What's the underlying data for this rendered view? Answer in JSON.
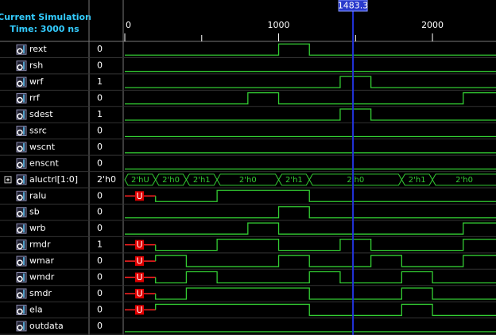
{
  "header": {
    "lines": [
      "Current Simulation",
      "Time: 3000 ns"
    ]
  },
  "timeline": {
    "range": [
      0,
      2413
    ],
    "major_ticks": [
      0,
      1000,
      2000
    ],
    "minor_ticks": [
      500,
      1500
    ],
    "cursor": 1483.3
  },
  "signals": [
    {
      "name": "rext",
      "value": "0",
      "init": 0,
      "edges": [
        1000,
        1200
      ]
    },
    {
      "name": "rsh",
      "value": "0",
      "init": 0,
      "edges": []
    },
    {
      "name": "wrf",
      "value": "1",
      "init": 0,
      "edges": [
        1400,
        1600
      ]
    },
    {
      "name": "rrf",
      "value": "0",
      "init": 0,
      "edges": [
        800,
        1000,
        2200
      ]
    },
    {
      "name": "sdest",
      "value": "1",
      "init": 0,
      "edges": [
        1400,
        1600
      ]
    },
    {
      "name": "ssrc",
      "value": "0",
      "init": 0,
      "edges": []
    },
    {
      "name": "wscnt",
      "value": "0",
      "init": 0,
      "edges": []
    },
    {
      "name": "enscnt",
      "value": "0",
      "init": 0,
      "edges": []
    },
    {
      "name": "aluctrl[1:0]",
      "value": "2'h0",
      "bus": [
        {
          "t": 0,
          "label": "2'hU"
        },
        {
          "t": 200,
          "label": "2'h0"
        },
        {
          "t": 400,
          "label": "2'h1"
        },
        {
          "t": 600,
          "label": "2'h0"
        },
        {
          "t": 1000,
          "label": "2'h1"
        },
        {
          "t": 1200,
          "label": "2'h0"
        },
        {
          "t": 1800,
          "label": "2'h1"
        },
        {
          "t": 2000,
          "label": "2'h0"
        }
      ]
    },
    {
      "name": "ralu",
      "value": "0",
      "u_until": 200,
      "u_label": "U",
      "init": 0,
      "edges": [
        600,
        1200
      ]
    },
    {
      "name": "sb",
      "value": "0",
      "init": 0,
      "edges": [
        1000,
        1200
      ]
    },
    {
      "name": "wrb",
      "value": "0",
      "init": 0,
      "edges": [
        800,
        1000,
        2200
      ]
    },
    {
      "name": "rmdr",
      "value": "1",
      "u_until": 200,
      "u_label": "U",
      "init": 0,
      "edges": [
        600,
        1000,
        1400,
        1600,
        2200
      ]
    },
    {
      "name": "wmar",
      "value": "0",
      "u_until": 200,
      "u_label": "U",
      "init": 1,
      "edges": [
        400,
        1000,
        1200,
        1600,
        1800,
        2200
      ]
    },
    {
      "name": "wmdr",
      "value": "0",
      "u_until": 200,
      "u_label": "U",
      "init": 0,
      "edges": [
        400,
        600,
        1200,
        1400,
        1800,
        2000
      ]
    },
    {
      "name": "smdr",
      "value": "0",
      "u_until": 200,
      "u_label": "U",
      "init": 0,
      "edges": [
        400,
        1200,
        1800,
        2000
      ]
    },
    {
      "name": "ela",
      "value": "0",
      "u_until": 200,
      "u_label": "U",
      "init": 1,
      "edges": [
        1200,
        1800,
        2000
      ]
    },
    {
      "name": "outdata",
      "value": "0",
      "init": 0,
      "edges": []
    }
  ]
}
